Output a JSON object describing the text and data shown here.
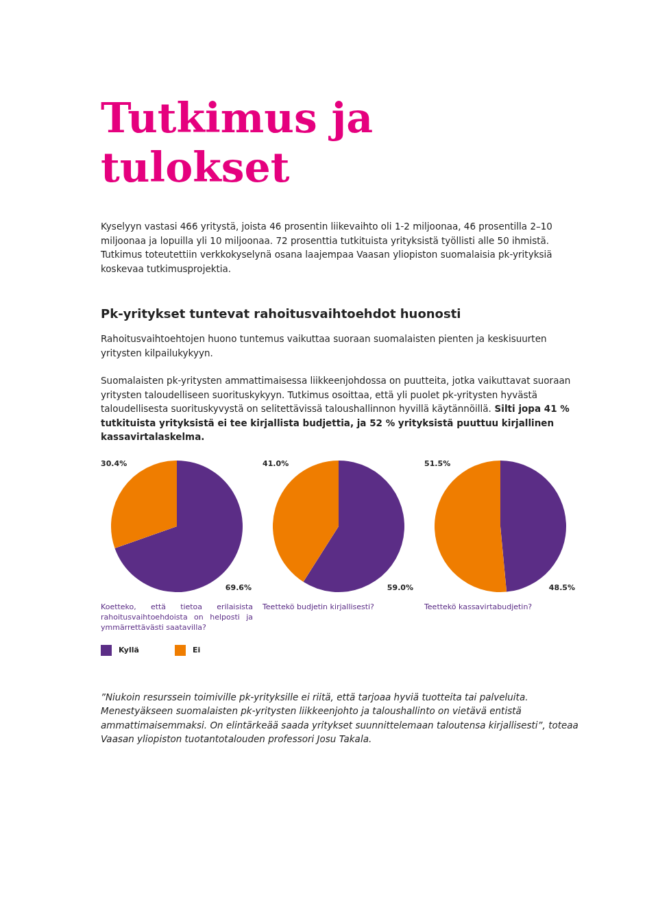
{
  "chart_data": [
    {
      "type": "other",
      "title": "Tutkimus ja tulokset",
      "annotations": [
        "Kyselyyn vastasi 466 yritystä, joista 46 prosentin liikevaihto oli 1-2 miljoonaa, 46 prosentilla 2–10 miljoonaa ja lopuilla yli 10 miljoonaa. 72 prosenttia tutkituista yrityksistä työllisti alle 50 ihmistä. Tutkimus toteutettiin verkkokyselynä osana laajempaa Vaasan yliopiston suomalaisia pk-yrityksiä koskevaa tutkimusprojektia.",
        "Pk-yritykset tuntevat rahoitusvaihtoehdot huonosti",
        "Rahoitusvaihtoehtojen huono tuntemus vaikuttaa suoraan suomalaisten pienten ja keskisuurten yritysten kilpailukykyyn.",
        "Suomalaisten pk-yritysten ammattimaisessa liikkeenjohdossa on puutteita, jotka vaikuttavat suoraan yritysten taloudelliseen suorituskykyyn. Tutkimus osoittaa, että yli puolet pk-yritysten hyvästä taloudellisesta suorituskyvystä on selitettävissä taloushallinnon hyvillä käytännöillä.",
        "Silti jopa 41 % tutkituista yrityksistä ei tee kirjallista budjettia, ja 52 % yrityksistä puuttuu kirjallinen kassavirtalaskelma."
      ]
    },
    {
      "type": "pie",
      "title": "Koetteko, että tietoa erilaisista rahoitusvaihtoehdoista on helposti ja ymmärrettävästi saatavilla?",
      "categories": [
        "Kyllä",
        "Ei"
      ],
      "values": [
        69.6,
        30.4
      ],
      "colors": [
        "#5b2d86",
        "#ef7d00"
      ],
      "value_labels": [
        "69.6%",
        "30.4%"
      ],
      "legend": "bottom"
    },
    {
      "type": "pie",
      "title": "Teettekö budjetin kirjallisesti?",
      "values": [
        59.0,
        41.0
      ],
      "colors": [
        "#5b2d86",
        "#ef7d00"
      ],
      "value_labels": [
        "59.0%",
        "41.0%"
      ]
    },
    {
      "type": "pie",
      "title": "Teettekö kassavirtabudjetin?",
      "values": [
        48.5,
        51.5
      ],
      "colors": [
        "#5b2d86",
        "#ef7d00"
      ],
      "value_labels": [
        "48.5%",
        "51.5%"
      ]
    },
    {
      "type": "other",
      "annotations": [
        "”Niukoin resurssein toimiville pk-yrityksille ei riitä, että tarjoaa hyviä tuotteita tai palveluita. Menestyäkseen suomalaisten pk-yritysten liikkeenjohto ja taloushallinto on vietävä entistä ammattimaisemmaksi. On elintärkeää saada yritykset suunnittelemaan taloutensa kirjallisesti”, toteaa Vaasan yliopiston tuotantotalouden professori Josu Takala."
      ]
    }
  ]
}
